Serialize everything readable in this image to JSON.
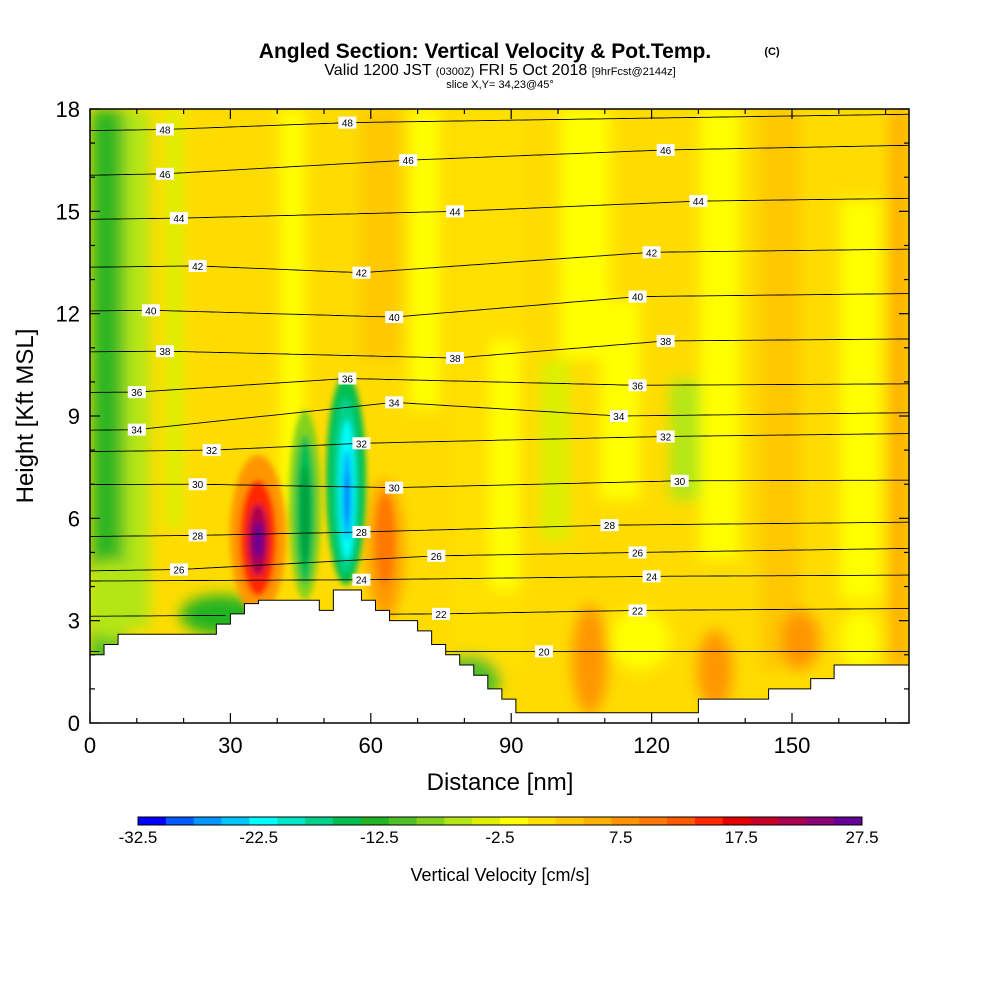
{
  "header": {
    "title": "Angled Section: Vertical Velocity & Pot.Temp.",
    "copyright": "(C)",
    "valid_prefix": "Valid 1200 JST",
    "valid_utc": "(0300Z)",
    "valid_date": "FRI 5 Oct 2018",
    "forecast": "[9hrFcst@2144z]",
    "slice": "slice X,Y= 34,23@45°"
  },
  "chart_data": {
    "type": "heatmap",
    "title": "Angled Section: Vertical Velocity & Pot.Temp.",
    "xlabel": "Distance [nm]",
    "ylabel": "Height [Kft MSL]",
    "xlim": [
      0,
      175
    ],
    "ylim": [
      0,
      18
    ],
    "x_ticks": [
      0,
      30,
      60,
      90,
      120,
      150
    ],
    "y_ticks": [
      0,
      3,
      6,
      9,
      12,
      15,
      18
    ],
    "colorbar": {
      "label": "Vertical Velocity [cm/s]",
      "tick_labels": [
        "-32.5",
        "-22.5",
        "-12.5",
        "-2.5",
        "7.5",
        "17.5",
        "27.5"
      ],
      "min": -32.5,
      "max": 27.5,
      "colors": [
        "#0000ff",
        "#005aff",
        "#0096ff",
        "#00c8ff",
        "#00ffff",
        "#00e6c8",
        "#00d28c",
        "#00c050",
        "#22b422",
        "#50c028",
        "#82d21e",
        "#b4e614",
        "#dcf000",
        "#ffff00",
        "#ffe000",
        "#ffc800",
        "#ffb000",
        "#ff9600",
        "#ff7800",
        "#ff5a00",
        "#ff2800",
        "#e60000",
        "#c80028",
        "#aa0050",
        "#8c0078",
        "#640096"
      ]
    },
    "contour_labels": [
      {
        "value": "48",
        "x": 16,
        "y": 17.4
      },
      {
        "value": "48",
        "x": 55,
        "y": 17.6
      },
      {
        "value": "46",
        "x": 16,
        "y": 16.1
      },
      {
        "value": "46",
        "x": 68,
        "y": 16.5
      },
      {
        "value": "46",
        "x": 123,
        "y": 16.8
      },
      {
        "value": "44",
        "x": 19,
        "y": 14.8
      },
      {
        "value": "44",
        "x": 78,
        "y": 15.0
      },
      {
        "value": "44",
        "x": 130,
        "y": 15.3
      },
      {
        "value": "42",
        "x": 23,
        "y": 13.4
      },
      {
        "value": "42",
        "x": 58,
        "y": 13.2
      },
      {
        "value": "42",
        "x": 120,
        "y": 13.8
      },
      {
        "value": "40",
        "x": 13,
        "y": 12.1
      },
      {
        "value": "40",
        "x": 65,
        "y": 11.9
      },
      {
        "value": "40",
        "x": 117,
        "y": 12.5
      },
      {
        "value": "38",
        "x": 16,
        "y": 10.9
      },
      {
        "value": "38",
        "x": 78,
        "y": 10.7
      },
      {
        "value": "38",
        "x": 123,
        "y": 11.2
      },
      {
        "value": "36",
        "x": 10,
        "y": 9.7
      },
      {
        "value": "36",
        "x": 55,
        "y": 10.1
      },
      {
        "value": "36",
        "x": 117,
        "y": 9.9
      },
      {
        "value": "34",
        "x": 10,
        "y": 8.6
      },
      {
        "value": "34",
        "x": 65,
        "y": 9.4
      },
      {
        "value": "34",
        "x": 113,
        "y": 9.0
      },
      {
        "value": "32",
        "x": 26,
        "y": 8.0
      },
      {
        "value": "32",
        "x": 58,
        "y": 8.2
      },
      {
        "value": "32",
        "x": 123,
        "y": 8.4
      },
      {
        "value": "30",
        "x": 23,
        "y": 7.0
      },
      {
        "value": "30",
        "x": 65,
        "y": 6.9
      },
      {
        "value": "30",
        "x": 126,
        "y": 7.1
      },
      {
        "value": "28",
        "x": 23,
        "y": 5.5
      },
      {
        "value": "28",
        "x": 58,
        "y": 5.6
      },
      {
        "value": "28",
        "x": 111,
        "y": 5.8
      },
      {
        "value": "26",
        "x": 19,
        "y": 4.5
      },
      {
        "value": "26",
        "x": 74,
        "y": 4.9
      },
      {
        "value": "26",
        "x": 117,
        "y": 5.0
      },
      {
        "value": "24",
        "x": 58,
        "y": 4.2
      },
      {
        "value": "24",
        "x": 120,
        "y": 4.3
      },
      {
        "value": "22",
        "x": 75,
        "y": 3.2
      },
      {
        "value": "22",
        "x": 117,
        "y": 3.3
      },
      {
        "value": "20",
        "x": 97,
        "y": 2.1
      }
    ],
    "terrain": [
      [
        0,
        2.0
      ],
      [
        3,
        2.0
      ],
      [
        3,
        2.3
      ],
      [
        6,
        2.3
      ],
      [
        6,
        2.6
      ],
      [
        27,
        2.6
      ],
      [
        27,
        2.9
      ],
      [
        30,
        2.9
      ],
      [
        30,
        3.2
      ],
      [
        33,
        3.2
      ],
      [
        33,
        3.5
      ],
      [
        36,
        3.5
      ],
      [
        36,
        3.6
      ],
      [
        49,
        3.6
      ],
      [
        49,
        3.3
      ],
      [
        52,
        3.3
      ],
      [
        52,
        3.9
      ],
      [
        58,
        3.9
      ],
      [
        58,
        3.6
      ],
      [
        61,
        3.6
      ],
      [
        61,
        3.3
      ],
      [
        64,
        3.3
      ],
      [
        64,
        3.0
      ],
      [
        70,
        3.0
      ],
      [
        70,
        2.7
      ],
      [
        73,
        2.7
      ],
      [
        73,
        2.3
      ],
      [
        76,
        2.3
      ],
      [
        76,
        2.0
      ],
      [
        79,
        2.0
      ],
      [
        79,
        1.7
      ],
      [
        82,
        1.7
      ],
      [
        82,
        1.4
      ],
      [
        85,
        1.4
      ],
      [
        85,
        1.0
      ],
      [
        88,
        1.0
      ],
      [
        88,
        0.7
      ],
      [
        91,
        0.7
      ],
      [
        91,
        0.3
      ],
      [
        130,
        0.3
      ],
      [
        130,
        0.7
      ],
      [
        145,
        0.7
      ],
      [
        145,
        1.0
      ],
      [
        154,
        1.0
      ],
      [
        154,
        1.3
      ],
      [
        159,
        1.3
      ],
      [
        159,
        1.7
      ],
      [
        175,
        1.7
      ]
    ]
  }
}
